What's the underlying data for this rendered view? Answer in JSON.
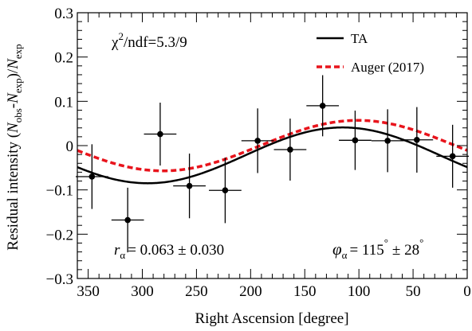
{
  "chart_data": {
    "type": "scatter",
    "xlabel": "Right Ascension [degree]",
    "ylabel": {
      "parts": [
        {
          "t": "Residual intensity (",
          "sub": false,
          "italic": false
        },
        {
          "t": "N",
          "sub": false,
          "italic": true
        },
        {
          "t": "obs",
          "sub": true,
          "italic": false
        },
        {
          "t": "-",
          "sub": false,
          "italic": false
        },
        {
          "t": "N",
          "sub": false,
          "italic": true
        },
        {
          "t": "exp",
          "sub": true,
          "italic": false
        },
        {
          "t": ")/",
          "sub": false,
          "italic": false
        },
        {
          "t": "N",
          "sub": false,
          "italic": true
        },
        {
          "t": "exp",
          "sub": true,
          "italic": false
        }
      ]
    },
    "x_reversed": true,
    "xlim": [
      360,
      0
    ],
    "ylim": [
      -0.3,
      0.3
    ],
    "x_ticks": [
      350,
      300,
      250,
      200,
      150,
      100,
      50,
      0
    ],
    "y_ticks": [
      -0.3,
      -0.2,
      -0.1,
      0,
      0.1,
      0.2,
      0.3
    ],
    "y_tick_labels": [
      "−0.3",
      "−0.2",
      "−0.1",
      "0",
      "0.1",
      "0.2",
      "0.3"
    ],
    "grid": false,
    "legend_position": "top-right",
    "series": [
      {
        "name": "data",
        "kind": "points",
        "color": "#000000",
        "x": [
          346.5,
          313.5,
          283.5,
          256.5,
          223.5,
          193.5,
          163.5,
          133.5,
          103.5,
          73.5,
          46.5,
          13.5
        ],
        "y": [
          -0.07,
          -0.168,
          0.026,
          -0.091,
          -0.101,
          0.011,
          -0.009,
          0.09,
          0.012,
          0.011,
          0.013,
          -0.024
        ],
        "x_err": [
          15,
          15,
          15,
          15,
          15,
          15,
          15,
          15,
          15,
          15,
          15,
          15
        ],
        "y_err": [
          0.073,
          0.073,
          0.071,
          0.073,
          0.074,
          0.073,
          0.07,
          0.069,
          0.067,
          0.071,
          0.074,
          0.071
        ]
      },
      {
        "name": "TA",
        "kind": "line",
        "color": "#000000",
        "dashed": false,
        "amplitude": 0.063,
        "phase_deg": 115,
        "offset": -0.022
      },
      {
        "name": "Auger (2017)",
        "kind": "line",
        "color": "#e8141c",
        "dashed": true,
        "amplitude": 0.057,
        "phase_deg": 101,
        "offset": 0.0
      }
    ],
    "annotations": {
      "chi2": {
        "chi": "χ",
        "sup": "2",
        "rest": "/ndf=5.3/9"
      },
      "r_alpha": {
        "sym": "r",
        "sub": "α",
        "rest": "= 0.063 ± 0.030"
      },
      "phi_alpha": {
        "sym": "φ",
        "sub": "α",
        "value": "= 115",
        "deg": "°",
        "pm": "± 28",
        "deg2": "°"
      }
    }
  }
}
